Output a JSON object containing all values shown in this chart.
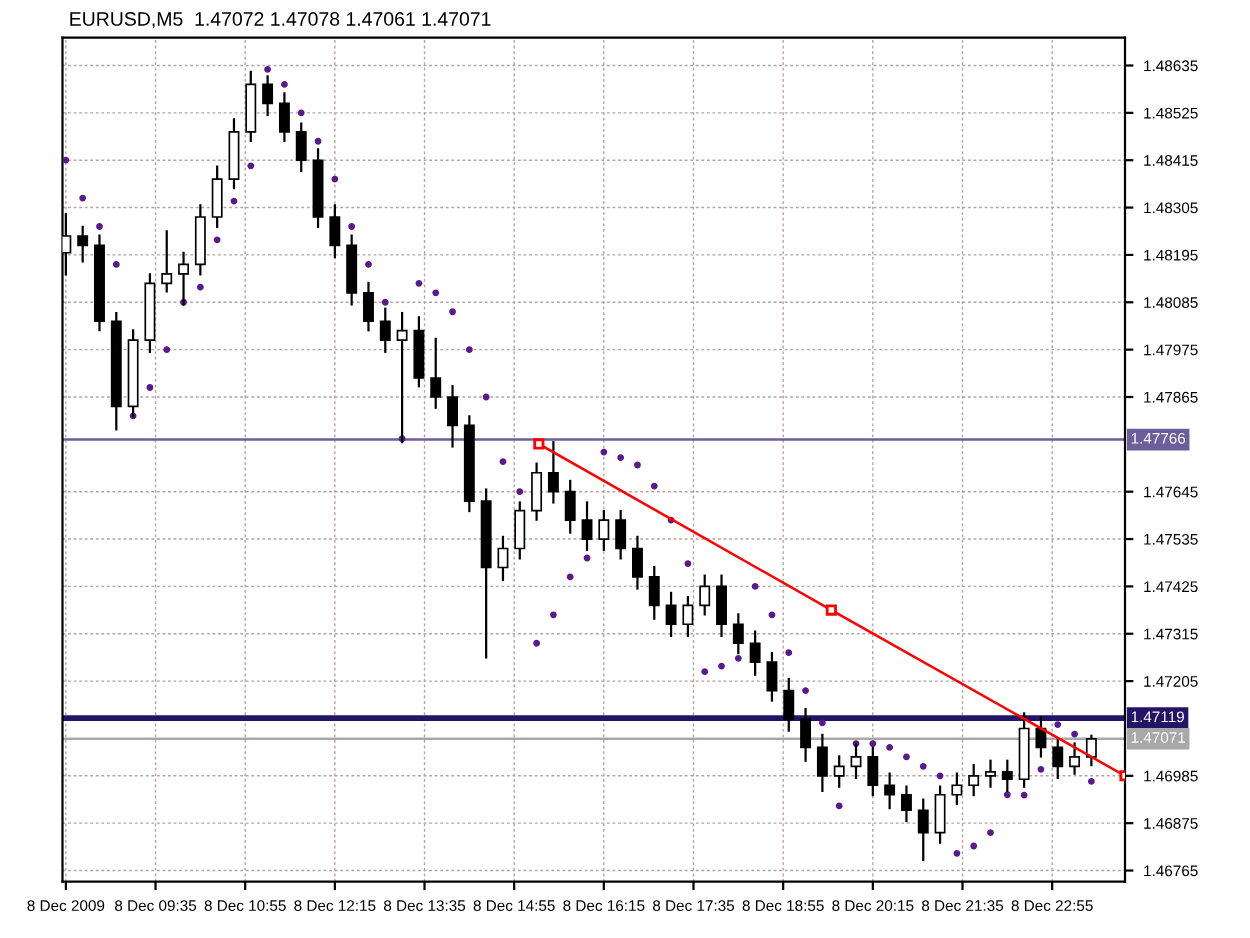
{
  "chart_data": {
    "type": "candlestick",
    "title": "EURUSD,M5  1.47072 1.47078 1.47061 1.47071",
    "x": [
      "2009-12-08T08:15",
      "2009-12-08T08:30",
      "2009-12-08T08:45",
      "2009-12-08T09:00",
      "2009-12-08T09:15",
      "2009-12-08T09:30",
      "2009-12-08T09:45",
      "2009-12-08T10:00",
      "2009-12-08T10:15",
      "2009-12-08T10:30",
      "2009-12-08T10:45",
      "2009-12-08T11:00",
      "2009-12-08T11:15",
      "2009-12-08T11:30",
      "2009-12-08T11:45",
      "2009-12-08T12:00",
      "2009-12-08T12:15",
      "2009-12-08T12:30",
      "2009-12-08T12:45",
      "2009-12-08T13:00",
      "2009-12-08T13:15",
      "2009-12-08T13:30",
      "2009-12-08T13:45",
      "2009-12-08T14:00",
      "2009-12-08T14:15",
      "2009-12-08T14:30",
      "2009-12-08T14:45",
      "2009-12-08T15:00",
      "2009-12-08T15:15",
      "2009-12-08T15:30",
      "2009-12-08T15:45",
      "2009-12-08T16:00",
      "2009-12-08T16:15",
      "2009-12-08T16:30",
      "2009-12-08T16:45",
      "2009-12-08T17:00",
      "2009-12-08T17:15",
      "2009-12-08T17:30",
      "2009-12-08T17:45",
      "2009-12-08T18:00",
      "2009-12-08T18:15",
      "2009-12-08T18:30",
      "2009-12-08T18:45",
      "2009-12-08T19:00",
      "2009-12-08T19:15",
      "2009-12-08T19:30",
      "2009-12-08T19:45",
      "2009-12-08T20:00",
      "2009-12-08T20:15",
      "2009-12-08T20:30",
      "2009-12-08T20:45",
      "2009-12-08T21:00",
      "2009-12-08T21:15",
      "2009-12-08T21:30",
      "2009-12-08T21:45",
      "2009-12-08T22:00",
      "2009-12-08T22:15",
      "2009-12-08T22:30",
      "2009-12-08T22:45",
      "2009-12-08T23:00",
      "2009-12-08T23:15",
      "2009-12-08T23:30"
    ],
    "ohlc": [
      [
        1.482,
        1.4829,
        1.4815,
        1.48239
      ],
      [
        1.48239,
        1.4826,
        1.4818,
        1.48217
      ],
      [
        1.48217,
        1.4824,
        1.4802,
        1.48041
      ],
      [
        1.48041,
        1.4806,
        1.4779,
        1.47843
      ],
      [
        1.47843,
        1.4802,
        1.4782,
        1.47997
      ],
      [
        1.47997,
        1.4815,
        1.4797,
        1.48129
      ],
      [
        1.48129,
        1.4825,
        1.4811,
        1.48151
      ],
      [
        1.48151,
        1.482,
        1.4808,
        1.48173
      ],
      [
        1.48173,
        1.4831,
        1.4815,
        1.48283
      ],
      [
        1.48283,
        1.484,
        1.4826,
        1.48371
      ],
      [
        1.48371,
        1.4851,
        1.4835,
        1.48481
      ],
      [
        1.48481,
        1.4862,
        1.4846,
        1.48591
      ],
      [
        1.48591,
        1.4861,
        1.4852,
        1.48547
      ],
      [
        1.48547,
        1.4857,
        1.4846,
        1.48481
      ],
      [
        1.48481,
        1.485,
        1.4839,
        1.48415
      ],
      [
        1.48415,
        1.4844,
        1.4826,
        1.48283
      ],
      [
        1.48283,
        1.4831,
        1.4819,
        1.48217
      ],
      [
        1.48217,
        1.4824,
        1.4808,
        1.48107
      ],
      [
        1.48107,
        1.4813,
        1.4802,
        1.48041
      ],
      [
        1.48041,
        1.4807,
        1.4797,
        1.47997
      ],
      [
        1.47997,
        1.4806,
        1.4776,
        1.48019
      ],
      [
        1.48019,
        1.4805,
        1.4789,
        1.47909
      ],
      [
        1.47909,
        1.48,
        1.4784,
        1.47865
      ],
      [
        1.47865,
        1.4789,
        1.4775,
        1.47799
      ],
      [
        1.47799,
        1.4782,
        1.476,
        1.47623
      ],
      [
        1.47623,
        1.4765,
        1.4726,
        1.47469
      ],
      [
        1.47469,
        1.4754,
        1.4744,
        1.47513
      ],
      [
        1.47513,
        1.4762,
        1.4749,
        1.47601
      ],
      [
        1.47601,
        1.4771,
        1.4758,
        1.47689
      ],
      [
        1.47689,
        1.4776,
        1.4762,
        1.47645
      ],
      [
        1.47645,
        1.4767,
        1.4755,
        1.47579
      ],
      [
        1.47579,
        1.4762,
        1.4751,
        1.47535
      ],
      [
        1.47535,
        1.476,
        1.4751,
        1.47579
      ],
      [
        1.47579,
        1.476,
        1.4749,
        1.47513
      ],
      [
        1.47513,
        1.4754,
        1.4742,
        1.47447
      ],
      [
        1.47447,
        1.4747,
        1.4735,
        1.47381
      ],
      [
        1.47381,
        1.4741,
        1.4731,
        1.47337
      ],
      [
        1.47337,
        1.474,
        1.4731,
        1.47381
      ],
      [
        1.47381,
        1.4745,
        1.4736,
        1.47425
      ],
      [
        1.47425,
        1.4745,
        1.4731,
        1.47337
      ],
      [
        1.47337,
        1.4736,
        1.4727,
        1.47293
      ],
      [
        1.47293,
        1.4732,
        1.4722,
        1.47249
      ],
      [
        1.47249,
        1.4727,
        1.4716,
        1.47183
      ],
      [
        1.47183,
        1.4721,
        1.4709,
        1.47117
      ],
      [
        1.47117,
        1.4714,
        1.4702,
        1.47051
      ],
      [
        1.47051,
        1.4708,
        1.4695,
        1.46985
      ],
      [
        1.46985,
        1.4703,
        1.4696,
        1.47007
      ],
      [
        1.47007,
        1.4706,
        1.4698,
        1.47029
      ],
      [
        1.47029,
        1.4705,
        1.4694,
        1.46963
      ],
      [
        1.46963,
        1.4699,
        1.4691,
        1.46941
      ],
      [
        1.46941,
        1.4696,
        1.4688,
        1.46905
      ],
      [
        1.46905,
        1.4693,
        1.4679,
        1.46853
      ],
      [
        1.46853,
        1.4696,
        1.4683,
        1.46941
      ],
      [
        1.46941,
        1.4699,
        1.4692,
        1.46963
      ],
      [
        1.46963,
        1.4701,
        1.4694,
        1.46985
      ],
      [
        1.46985,
        1.4702,
        1.4696,
        1.46994
      ],
      [
        1.46994,
        1.4702,
        1.4695,
        1.46977
      ],
      [
        1.46977,
        1.4713,
        1.4696,
        1.47095
      ],
      [
        1.47095,
        1.4712,
        1.4703,
        1.47051
      ],
      [
        1.47051,
        1.4707,
        1.4698,
        1.47007
      ],
      [
        1.47007,
        1.4706,
        1.4699,
        1.47029
      ],
      [
        1.47029,
        1.47078,
        1.4701,
        1.47071
      ]
    ],
    "series": [
      {
        "type": "scatter",
        "color": "#5a1a8c",
        "marker": "circle",
        "values": [
          1.48415,
          1.48327,
          1.48261,
          1.48173,
          1.47821,
          1.47887,
          1.47975,
          1.48085,
          1.4812,
          1.4823,
          1.4832,
          1.48402,
          1.48626,
          1.48591,
          1.48525,
          1.48459,
          1.48371,
          1.48261,
          1.48173,
          1.48085,
          1.47768,
          1.48129,
          1.48107,
          1.48063,
          1.47975,
          1.47865,
          1.47715,
          1.47645,
          1.47293,
          1.47359,
          1.47447,
          1.47491,
          1.47737,
          1.47724,
          1.47707,
          1.47658,
          1.47579,
          1.47478,
          1.47227,
          1.4724,
          1.47258,
          1.47425,
          1.47359,
          1.47271,
          1.47183,
          1.47108,
          1.46915,
          1.4706,
          1.4706,
          1.47051,
          1.47029,
          1.47007,
          1.46985,
          1.46805,
          1.46822,
          1.46853,
          1.46941,
          1.4694,
          1.47,
          1.47104,
          1.47082,
          1.46972
        ]
      },
      {
        "type": "line",
        "color": "#ff0000",
        "marker": "square",
        "x": [
          "2009-12-08T15:17",
          "2009-12-08T19:38",
          "2009-12-09T00:00"
        ],
        "values": [
          1.47756,
          1.4737,
          1.46985
        ]
      }
    ],
    "ref_lines": [
      {
        "axis": "y",
        "value": 1.47766,
        "label": "1.47766",
        "color": "#6a5f9a"
      },
      {
        "axis": "y",
        "value": 1.47119,
        "label": "1.47119",
        "color": "#241466"
      },
      {
        "axis": "y",
        "value": 1.47071,
        "label": "1.47071",
        "color": "#a8a8a8"
      }
    ],
    "xlim": [
      "2009-12-08T08:12",
      "2009-12-09T00:00"
    ],
    "ylim": [
      1.46739,
      1.487
    ],
    "xticks": [
      {
        "value": "2009-12-08T08:15",
        "label": "8 Dec 2009"
      },
      {
        "value": "2009-12-08T09:35",
        "label": "8 Dec 09:35"
      },
      {
        "value": "2009-12-08T10:55",
        "label": "8 Dec 10:55"
      },
      {
        "value": "2009-12-08T12:15",
        "label": "8 Dec 12:15"
      },
      {
        "value": "2009-12-08T13:35",
        "label": "8 Dec 13:35"
      },
      {
        "value": "2009-12-08T14:55",
        "label": "8 Dec 14:55"
      },
      {
        "value": "2009-12-08T16:15",
        "label": "8 Dec 16:15"
      },
      {
        "value": "2009-12-08T17:35",
        "label": "8 Dec 17:35"
      },
      {
        "value": "2009-12-08T18:55",
        "label": "8 Dec 18:55"
      },
      {
        "value": "2009-12-08T20:15",
        "label": "8 Dec 20:15"
      },
      {
        "value": "2009-12-08T21:35",
        "label": "8 Dec 21:35"
      },
      {
        "value": "2009-12-08T22:55",
        "label": "8 Dec 22:55"
      }
    ],
    "yticks": [
      1.48635,
      1.48525,
      1.48415,
      1.48305,
      1.48195,
      1.48085,
      1.47975,
      1.47865,
      1.47645,
      1.47535,
      1.47425,
      1.47315,
      1.47205,
      1.46985,
      1.46875,
      1.46765
    ],
    "grid": true,
    "legend": false
  }
}
